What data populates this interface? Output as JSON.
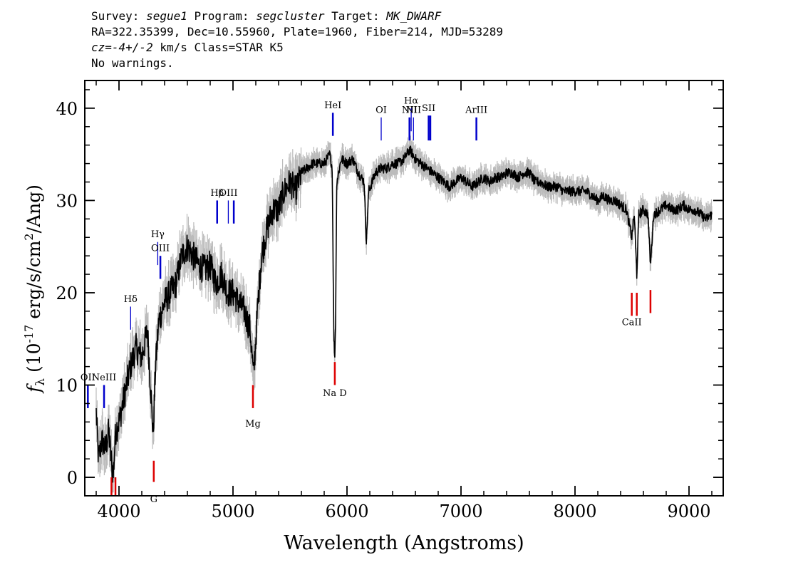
{
  "header": {
    "line1": {
      "survey_label": "Survey: ",
      "survey": "segue1",
      "program_label": " Program: ",
      "program": "segcluster",
      "target_label": " Target: ",
      "target": "MK_DWARF"
    },
    "line2": "RA=322.35399, Dec=10.55960, Plate=1960, Fiber=214, MJD=53289",
    "line3": {
      "cz": "cz=-4+/-2",
      "cz_unit": " km/s Class=STAR K5"
    },
    "line4": "No warnings."
  },
  "colors": {
    "flux": "#000000",
    "error": "#bbbbbb",
    "emission": "#0000cc",
    "absorption": "#dd0000"
  },
  "chart_data": {
    "type": "line",
    "xlabel": "Wavelength (Angstroms)",
    "ylabel_parts": {
      "f": "f",
      "sub": "λ",
      "pre": " (10",
      "exp1": "-17",
      "mid": " erg/s/cm",
      "exp2": "2",
      "post": "/Ang)"
    },
    "xlim": [
      3700,
      9300
    ],
    "ylim": [
      -2,
      43
    ],
    "xticks": [
      4000,
      5000,
      6000,
      7000,
      8000,
      9000
    ],
    "yticks": [
      0,
      10,
      20,
      30,
      40
    ],
    "spectrum": [
      [
        3800,
        7
      ],
      [
        3820,
        2
      ],
      [
        3850,
        4
      ],
      [
        3880,
        3
      ],
      [
        3910,
        5
      ],
      [
        3930,
        2
      ],
      [
        3950,
        0.3
      ],
      [
        3970,
        5
      ],
      [
        4000,
        6
      ],
      [
        4050,
        9
      ],
      [
        4100,
        12
      ],
      [
        4150,
        14
      ],
      [
        4200,
        13
      ],
      [
        4250,
        16
      ],
      [
        4300,
        4.5
      ],
      [
        4320,
        12
      ],
      [
        4350,
        17
      ],
      [
        4400,
        19
      ],
      [
        4450,
        20
      ],
      [
        4500,
        21
      ],
      [
        4550,
        24
      ],
      [
        4600,
        25
      ],
      [
        4650,
        24
      ],
      [
        4700,
        23
      ],
      [
        4750,
        22.5
      ],
      [
        4800,
        23
      ],
      [
        4850,
        21
      ],
      [
        4900,
        22
      ],
      [
        4950,
        20
      ],
      [
        5000,
        20
      ],
      [
        5050,
        19
      ],
      [
        5100,
        18
      ],
      [
        5150,
        16
      ],
      [
        5180,
        11
      ],
      [
        5220,
        19
      ],
      [
        5250,
        24
      ],
      [
        5300,
        27
      ],
      [
        5350,
        29
      ],
      [
        5400,
        29
      ],
      [
        5450,
        31
      ],
      [
        5500,
        32
      ],
      [
        5550,
        31
      ],
      [
        5600,
        33
      ],
      [
        5650,
        33.5
      ],
      [
        5700,
        34
      ],
      [
        5750,
        34
      ],
      [
        5800,
        34
      ],
      [
        5850,
        35
      ],
      [
        5870,
        33.5
      ],
      [
        5885,
        15
      ],
      [
        5893,
        13
      ],
      [
        5900,
        17
      ],
      [
        5910,
        32
      ],
      [
        5950,
        34.5
      ],
      [
        6000,
        34
      ],
      [
        6050,
        34.5
      ],
      [
        6100,
        33
      ],
      [
        6150,
        32
      ],
      [
        6170,
        25.5
      ],
      [
        6190,
        31
      ],
      [
        6250,
        33
      ],
      [
        6300,
        33.5
      ],
      [
        6350,
        33.5
      ],
      [
        6400,
        34
      ],
      [
        6450,
        34
      ],
      [
        6500,
        34.5
      ],
      [
        6550,
        35.5
      ],
      [
        6600,
        34.5
      ],
      [
        6650,
        34
      ],
      [
        6700,
        33.5
      ],
      [
        6750,
        33
      ],
      [
        6800,
        32.5
      ],
      [
        6850,
        32
      ],
      [
        6900,
        31.5
      ],
      [
        6950,
        32
      ],
      [
        7000,
        32.5
      ],
      [
        7050,
        32
      ],
      [
        7100,
        31.5
      ],
      [
        7150,
        32
      ],
      [
        7200,
        32.5
      ],
      [
        7250,
        32
      ],
      [
        7300,
        32.5
      ],
      [
        7350,
        32.5
      ],
      [
        7400,
        33
      ],
      [
        7450,
        33
      ],
      [
        7500,
        32.5
      ],
      [
        7550,
        33
      ],
      [
        7600,
        33
      ],
      [
        7650,
        32
      ],
      [
        7700,
        32
      ],
      [
        7750,
        31.5
      ],
      [
        7800,
        31.5
      ],
      [
        7850,
        31.5
      ],
      [
        7900,
        31
      ],
      [
        7950,
        31
      ],
      [
        8000,
        31
      ],
      [
        8050,
        31
      ],
      [
        8100,
        31
      ],
      [
        8150,
        30.5
      ],
      [
        8200,
        30
      ],
      [
        8250,
        30.5
      ],
      [
        8300,
        30
      ],
      [
        8350,
        30
      ],
      [
        8400,
        29.5
      ],
      [
        8450,
        29
      ],
      [
        8498,
        26
      ],
      [
        8520,
        28.5
      ],
      [
        8542,
        22
      ],
      [
        8560,
        28.5
      ],
      [
        8600,
        29
      ],
      [
        8640,
        28.5
      ],
      [
        8662,
        23
      ],
      [
        8690,
        28.5
      ],
      [
        8750,
        29
      ],
      [
        8800,
        29.5
      ],
      [
        8850,
        29
      ],
      [
        8900,
        29
      ],
      [
        8950,
        29.5
      ],
      [
        9000,
        29
      ],
      [
        9050,
        29
      ],
      [
        9100,
        28.5
      ],
      [
        9150,
        28
      ],
      [
        9200,
        28.5
      ]
    ],
    "emission_lines": [
      {
        "label": "OII",
        "wave": 3727,
        "y0": 7.5,
        "y1": 10,
        "label_y": 10.5,
        "thick": true
      },
      {
        "label": "NeIII",
        "wave": 3869,
        "y0": 7.5,
        "y1": 10,
        "label_y": 10.5,
        "thick": true
      },
      {
        "label": "Hδ",
        "wave": 4102,
        "y0": 16,
        "y1": 18.5,
        "label_y": 19,
        "thick": false
      },
      {
        "label": "Hγ",
        "wave": 4340,
        "y0": 23,
        "y1": 25.5,
        "label_y": 26,
        "thick": false
      },
      {
        "label": "OIII",
        "wave": 4363,
        "y0": 21.5,
        "y1": 24,
        "label_y": 24.5,
        "thick": true
      },
      {
        "label": "Hβ",
        "wave": 4861,
        "y0": 27.5,
        "y1": 30,
        "label_y": 30.5,
        "thick": true
      },
      {
        "label": "OIII",
        "wave": 4959,
        "y0": 27.5,
        "y1": 30,
        "label_y": 30.5,
        "thick": false
      },
      {
        "label": "",
        "wave": 5007,
        "y0": 27.5,
        "y1": 30,
        "label_y": 30.5,
        "thick": true
      },
      {
        "label": "HeI",
        "wave": 5876,
        "y0": 37,
        "y1": 39.5,
        "label_y": 40,
        "thick": true
      },
      {
        "label": "OI",
        "wave": 6300,
        "y0": 36.5,
        "y1": 39,
        "label_y": 39.5,
        "thick": false
      },
      {
        "label": "NII",
        "wave": 6548,
        "y0": 36.5,
        "y1": 39,
        "label_y": 39.5,
        "thick": true
      },
      {
        "label": "Hα",
        "wave": 6563,
        "y0": 37.5,
        "y1": 40,
        "label_y": 40.5,
        "thick": false
      },
      {
        "label": "NII",
        "wave": 6583,
        "y0": 36.5,
        "y1": 39,
        "label_y": 39.5,
        "thick": false
      },
      {
        "label": "SII",
        "wave": 6716,
        "y0": 36.5,
        "y1": 39.2,
        "label_y": 39.7,
        "thick": true
      },
      {
        "label": "",
        "wave": 6731,
        "y0": 36.5,
        "y1": 39.2,
        "label_y": 39.7,
        "thick": true
      },
      {
        "label": "ArIII",
        "wave": 7135,
        "y0": 36.5,
        "y1": 39,
        "label_y": 39.5,
        "thick": true
      }
    ],
    "absorption_lines": [
      {
        "label": "",
        "wave": 3934,
        "y0": -2,
        "y1": 0,
        "label_y": -3,
        "thick": true
      },
      {
        "label": "",
        "wave": 3969,
        "y0": -2,
        "y1": 0,
        "label_y": -3,
        "thick": true
      },
      {
        "label": "G",
        "wave": 4305,
        "y0": -0.5,
        "y1": 1.8,
        "label_y": -2.7,
        "thick": true
      },
      {
        "label": "Mg",
        "wave": 5175,
        "y0": 7.5,
        "y1": 10,
        "label_y": 5.5,
        "thick": true
      },
      {
        "label": "Na D",
        "wave": 5893,
        "y0": 10,
        "y1": 12.5,
        "label_y": 8.8,
        "thick": true
      },
      {
        "label": "CaII",
        "wave": 8498,
        "y0": 17.5,
        "y1": 20,
        "label_y": 16.5,
        "thick": true
      },
      {
        "label": "",
        "wave": 8542,
        "y0": 17.5,
        "y1": 20,
        "label_y": 16.5,
        "thick": true
      },
      {
        "label": "",
        "wave": 8662,
        "y0": 17.8,
        "y1": 20.3,
        "label_y": 16.5,
        "thick": true
      }
    ]
  }
}
